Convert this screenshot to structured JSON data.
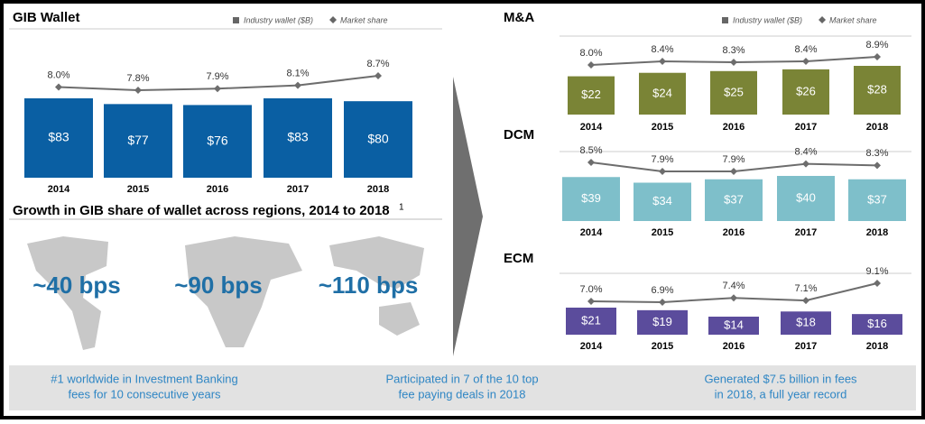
{
  "chart_data": [
    {
      "type": "bar",
      "title": "GIB Wallet",
      "legend": true,
      "categories": [
        "2014",
        "2015",
        "2016",
        "2017",
        "2018"
      ],
      "series": [
        {
          "name": "Industry wallet ($B)",
          "type": "bar",
          "color": "#0a5fa3",
          "values": [
            83,
            77,
            76,
            83,
            80
          ],
          "value_labels": [
            "$83",
            "$77",
            "$76",
            "$83",
            "$80"
          ]
        },
        {
          "name": "Market share",
          "type": "line",
          "color": "#6d6d6d",
          "values": [
            8.0,
            7.8,
            7.9,
            8.1,
            8.7
          ],
          "value_labels": [
            "8.0%",
            "7.8%",
            "7.9%",
            "8.1%",
            "8.7%"
          ]
        }
      ]
    },
    {
      "type": "bar",
      "title": "M&A",
      "legend": true,
      "categories": [
        "2014",
        "2015",
        "2016",
        "2017",
        "2018"
      ],
      "series": [
        {
          "name": "Industry wallet ($B)",
          "type": "bar",
          "color": "#7a8436",
          "values": [
            22,
            24,
            25,
            26,
            28
          ],
          "value_labels": [
            "$22",
            "$24",
            "$25",
            "$26",
            "$28"
          ]
        },
        {
          "name": "Market share",
          "type": "line",
          "color": "#6d6d6d",
          "values": [
            8.0,
            8.4,
            8.3,
            8.4,
            8.9
          ],
          "value_labels": [
            "8.0%",
            "8.4%",
            "8.3%",
            "8.4%",
            "8.9%"
          ]
        }
      ]
    },
    {
      "type": "bar",
      "title": "DCM",
      "legend": false,
      "categories": [
        "2014",
        "2015",
        "2016",
        "2017",
        "2018"
      ],
      "series": [
        {
          "name": "Industry wallet ($B)",
          "type": "bar",
          "color": "#7ebfca",
          "values": [
            39,
            34,
            37,
            40,
            37
          ],
          "value_labels": [
            "$39",
            "$34",
            "$37",
            "$40",
            "$37"
          ]
        },
        {
          "name": "Market share",
          "type": "line",
          "color": "#6d6d6d",
          "values": [
            8.5,
            7.9,
            7.9,
            8.4,
            8.3
          ],
          "value_labels": [
            "8.5%",
            "7.9%",
            "7.9%",
            "8.4%",
            "8.3%"
          ]
        }
      ]
    },
    {
      "type": "bar",
      "title": "ECM",
      "legend": false,
      "categories": [
        "2014",
        "2015",
        "2016",
        "2017",
        "2018"
      ],
      "series": [
        {
          "name": "Industry wallet ($B)",
          "type": "bar",
          "color": "#5b4c9c",
          "values": [
            21,
            19,
            14,
            18,
            16
          ],
          "value_labels": [
            "$21",
            "$19",
            "$14",
            "$18",
            "$16"
          ]
        },
        {
          "name": "Market share",
          "type": "line",
          "color": "#6d6d6d",
          "values": [
            7.0,
            6.9,
            7.4,
            7.1,
            9.1
          ],
          "value_labels": [
            "7.0%",
            "6.9%",
            "7.4%",
            "7.1%",
            "9.1%"
          ]
        }
      ]
    }
  ],
  "regions": {
    "title": "Growth in GIB share of wallet across regions, 2014 to 2018",
    "footnote": "1",
    "labels": [
      "~40 bps",
      "~90 bps",
      "~110 bps"
    ]
  },
  "footer": [
    [
      "#1 worldwide in Investment Banking",
      "fees for 10 consecutive years"
    ],
    [
      "Participated in 7 of the 10 top",
      "fee paying deals in 2018"
    ],
    [
      "Generated $7.5 billion in fees",
      "in 2018, a full year record"
    ]
  ]
}
